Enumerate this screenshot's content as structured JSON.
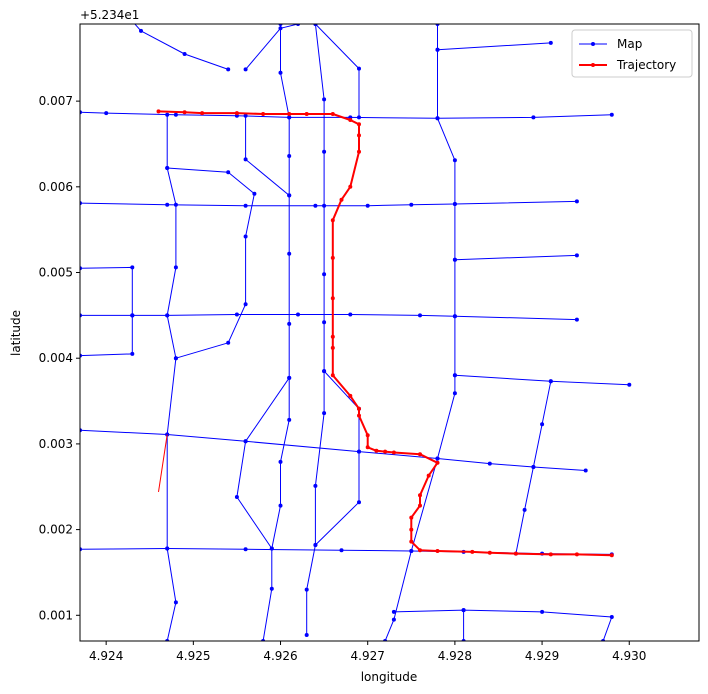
{
  "chart_data": {
    "type": "line",
    "xlabel": "longitude",
    "ylabel": "latitude",
    "offset_label": "+5.234e1",
    "xlim": [
      4.9237,
      4.9308
    ],
    "ylim_offset": [
      0.0007,
      0.0079
    ],
    "xticks": [
      "4.924",
      "4.925",
      "4.926",
      "4.927",
      "4.928",
      "4.929",
      "4.930"
    ],
    "xtick_values": [
      4.924,
      4.925,
      4.926,
      4.927,
      4.928,
      4.929,
      4.93
    ],
    "yticks": [
      "0.001",
      "0.002",
      "0.003",
      "0.004",
      "0.005",
      "0.006",
      "0.007"
    ],
    "ytick_values": [
      0.001,
      0.002,
      0.003,
      0.004,
      0.005,
      0.006,
      0.007
    ],
    "legend": {
      "position": "top-right",
      "entries": [
        {
          "label": "Map",
          "color": "#0000ff"
        },
        {
          "label": "Trajectory",
          "color": "#ff0000"
        }
      ]
    },
    "colors": {
      "map": "#0000ff",
      "trajectory": "#ff0000",
      "connector": "#ff0000"
    },
    "map_edges": [
      [
        [
          4.9237,
          0.00862
        ],
        [
          4.9244,
          0.00782
        ],
        [
          4.9249,
          0.00755
        ],
        [
          4.9254,
          0.00737
        ]
      ],
      [
        [
          4.9237,
          0.00687
        ],
        [
          4.924,
          0.00686
        ],
        [
          4.9248,
          0.00684
        ],
        [
          4.9255,
          0.00683
        ],
        [
          4.9261,
          0.00681
        ],
        [
          4.9268,
          0.00681
        ],
        [
          4.9278,
          0.0068
        ],
        [
          4.9289,
          0.00681
        ],
        [
          4.9298,
          0.00684
        ]
      ],
      [
        [
          4.9237,
          0.00581
        ],
        [
          4.9247,
          0.00579
        ],
        [
          4.9256,
          0.00578
        ],
        [
          4.9264,
          0.00578
        ],
        [
          4.927,
          0.00578
        ],
        [
          4.9275,
          0.00579
        ],
        [
          4.928,
          0.0058
        ],
        [
          4.9294,
          0.00583
        ]
      ],
      [
        [
          4.9237,
          0.00505
        ],
        [
          4.9243,
          0.00506
        ],
        [
          4.9243,
          0.0045
        ],
        [
          4.9237,
          0.0045
        ]
      ],
      [
        [
          4.9243,
          0.0045
        ],
        [
          4.9247,
          0.0045
        ],
        [
          4.9255,
          0.00451
        ],
        [
          4.9262,
          0.00451
        ],
        [
          4.9268,
          0.00451
        ],
        [
          4.9276,
          0.0045
        ],
        [
          4.928,
          0.00449
        ],
        [
          4.9294,
          0.00445
        ]
      ],
      [
        [
          4.9237,
          0.00403
        ],
        [
          4.9243,
          0.00405
        ],
        [
          4.9243,
          0.0045
        ]
      ],
      [
        [
          4.9237,
          0.00316
        ],
        [
          4.9247,
          0.00311
        ],
        [
          4.9256,
          0.00303
        ],
        [
          4.9269,
          0.00291
        ],
        [
          4.9278,
          0.00283
        ],
        [
          4.9284,
          0.00277
        ],
        [
          4.9289,
          0.00273
        ],
        [
          4.9295,
          0.00269
        ]
      ],
      [
        [
          4.9237,
          0.00177
        ],
        [
          4.9247,
          0.00178
        ],
        [
          4.9256,
          0.00177
        ],
        [
          4.9267,
          0.00176
        ],
        [
          4.9275,
          0.00175
        ],
        [
          4.9281,
          0.00174
        ],
        [
          4.929,
          0.00172
        ],
        [
          4.9298,
          0.00171
        ]
      ],
      [
        [
          4.9247,
          0.00684
        ],
        [
          4.9247,
          0.00622
        ],
        [
          4.9248,
          0.00579
        ],
        [
          4.9248,
          0.00506
        ],
        [
          4.9247,
          0.0045
        ],
        [
          4.9248,
          0.004
        ],
        [
          4.9247,
          0.00311
        ],
        [
          4.9247,
          0.00178
        ],
        [
          4.9248,
          0.00115
        ],
        [
          4.9247,
          0.0007
        ]
      ],
      [
        [
          4.9247,
          0.00622
        ],
        [
          4.9254,
          0.00617
        ],
        [
          4.9257,
          0.00592
        ],
        [
          4.9256,
          0.00542
        ],
        [
          4.9256,
          0.00463
        ],
        [
          4.9254,
          0.00418
        ],
        [
          4.9248,
          0.004
        ]
      ],
      [
        [
          4.9256,
          0.00737
        ],
        [
          4.926,
          0.00785
        ],
        [
          4.9262,
          0.0079
        ]
      ],
      [
        [
          4.9256,
          0.00683
        ],
        [
          4.9256,
          0.00632
        ],
        [
          4.9261,
          0.0059
        ]
      ],
      [
        [
          4.926,
          0.0079
        ],
        [
          4.926,
          0.00733
        ],
        [
          4.9261,
          0.00681
        ],
        [
          4.9261,
          0.00636
        ],
        [
          4.9261,
          0.0059
        ],
        [
          4.9261,
          0.00522
        ],
        [
          4.9261,
          0.0044
        ],
        [
          4.9261,
          0.00377
        ],
        [
          4.9261,
          0.00328
        ],
        [
          4.926,
          0.00279
        ],
        [
          4.926,
          0.00228
        ],
        [
          4.9259,
          0.00178
        ],
        [
          4.9259,
          0.00131
        ],
        [
          4.9258,
          0.0007
        ]
      ],
      [
        [
          4.9261,
          0.00377
        ],
        [
          4.9256,
          0.00303
        ],
        [
          4.9255,
          0.00238
        ],
        [
          4.9259,
          0.00178
        ]
      ],
      [
        [
          4.9264,
          0.0079
        ],
        [
          4.9265,
          0.00702
        ],
        [
          4.9265,
          0.00641
        ],
        [
          4.9265,
          0.00578
        ],
        [
          4.9265,
          0.00498
        ],
        [
          4.9265,
          0.00442
        ],
        [
          4.9265,
          0.00385
        ],
        [
          4.9265,
          0.00336
        ],
        [
          4.9264,
          0.00251
        ],
        [
          4.9264,
          0.00182
        ],
        [
          4.9263,
          0.0013
        ],
        [
          4.9263,
          0.00077
        ]
      ],
      [
        [
          4.9264,
          0.0079
        ],
        [
          4.9269,
          0.00738
        ],
        [
          4.9269,
          0.00681
        ]
      ],
      [
        [
          4.9265,
          0.00385
        ],
        [
          4.9269,
          0.00341
        ],
        [
          4.9269,
          0.00291
        ],
        [
          4.9269,
          0.00232
        ],
        [
          4.9264,
          0.00182
        ]
      ],
      [
        [
          4.9278,
          0.0079
        ],
        [
          4.9278,
          0.0076
        ],
        [
          4.9291,
          0.00768
        ]
      ],
      [
        [
          4.9278,
          0.0076
        ],
        [
          4.9278,
          0.0068
        ],
        [
          4.928,
          0.00631
        ],
        [
          4.928,
          0.0058
        ],
        [
          4.928,
          0.00515
        ],
        [
          4.928,
          0.00449
        ],
        [
          4.928,
          0.0038
        ],
        [
          4.928,
          0.00359
        ],
        [
          4.9278,
          0.00283
        ],
        [
          4.9275,
          0.00175
        ],
        [
          4.9273,
          0.00095
        ],
        [
          4.9272,
          0.0007
        ]
      ],
      [
        [
          4.928,
          0.00515
        ],
        [
          4.9294,
          0.0052
        ]
      ],
      [
        [
          4.928,
          0.0038
        ],
        [
          4.9291,
          0.00373
        ],
        [
          4.93,
          0.00369
        ]
      ],
      [
        [
          4.9291,
          0.00373
        ],
        [
          4.929,
          0.00323
        ],
        [
          4.9289,
          0.00273
        ],
        [
          4.9288,
          0.00223
        ],
        [
          4.9287,
          0.00172
        ]
      ],
      [
        [
          4.9273,
          0.00104
        ],
        [
          4.9281,
          0.00106
        ],
        [
          4.929,
          0.00104
        ],
        [
          4.9298,
          0.00098
        ],
        [
          4.9297,
          0.0007
        ]
      ],
      [
        [
          4.9281,
          0.00106
        ],
        [
          4.9281,
          0.0007
        ]
      ]
    ],
    "connector": [
      [
        4.9247,
        0.00311
      ],
      [
        4.9246,
        0.00244
      ]
    ],
    "trajectory": [
      [
        4.9246,
        0.00688
      ],
      [
        4.9249,
        0.00687
      ],
      [
        4.9251,
        0.00686
      ],
      [
        4.9255,
        0.00686
      ],
      [
        4.9258,
        0.00685
      ],
      [
        4.9261,
        0.00685
      ],
      [
        4.9263,
        0.00685
      ],
      [
        4.9266,
        0.00685
      ],
      [
        4.9268,
        0.00678
      ],
      [
        4.9269,
        0.00673
      ],
      [
        4.9269,
        0.0066
      ],
      [
        4.9269,
        0.00641
      ],
      [
        4.9268,
        0.006
      ],
      [
        4.9267,
        0.00585
      ],
      [
        4.9266,
        0.00561
      ],
      [
        4.9266,
        0.00517
      ],
      [
        4.9266,
        0.0047
      ],
      [
        4.9266,
        0.00425
      ],
      [
        4.9266,
        0.00412
      ],
      [
        4.9266,
        0.0038
      ],
      [
        4.9268,
        0.00356
      ],
      [
        4.9269,
        0.00341
      ],
      [
        4.9269,
        0.00333
      ],
      [
        4.927,
        0.0031
      ],
      [
        4.927,
        0.00296
      ],
      [
        4.9271,
        0.00292
      ],
      [
        4.9272,
        0.00291
      ],
      [
        4.9273,
        0.0029
      ],
      [
        4.9276,
        0.00288
      ],
      [
        4.9278,
        0.00278
      ],
      [
        4.9277,
        0.00263
      ],
      [
        4.9276,
        0.0024
      ],
      [
        4.9276,
        0.00228
      ],
      [
        4.9275,
        0.00214
      ],
      [
        4.9275,
        0.002
      ],
      [
        4.9275,
        0.00186
      ],
      [
        4.9276,
        0.00176
      ],
      [
        4.9278,
        0.00175
      ],
      [
        4.9282,
        0.00174
      ],
      [
        4.9284,
        0.00173
      ],
      [
        4.9287,
        0.00172
      ],
      [
        4.9291,
        0.00171
      ],
      [
        4.9294,
        0.00171
      ],
      [
        4.9298,
        0.0017
      ]
    ]
  }
}
